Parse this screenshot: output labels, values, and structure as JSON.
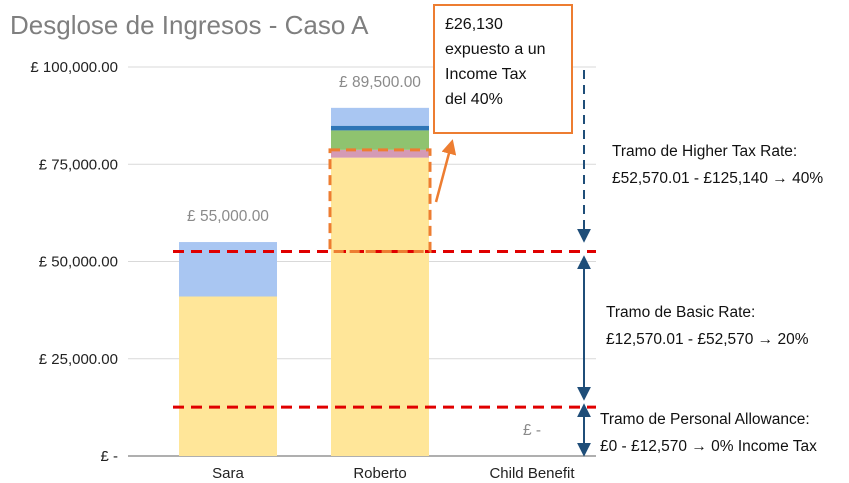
{
  "chart_data": {
    "type": "bar",
    "stacked": true,
    "title": "Desglose de Ingresos - Caso A",
    "categories": [
      "Sara",
      "Roberto",
      "Child Benefit"
    ],
    "ylim": [
      0,
      100000
    ],
    "y_ticks": [
      0,
      25000,
      50000,
      75000,
      100000
    ],
    "y_tick_labels": [
      "£ -",
      "£ 25,000.00",
      "£ 50,000.00",
      "£ 75,000.00",
      "£ 100,000.00"
    ],
    "grid": true,
    "legend": "none",
    "series": [
      {
        "color": "#ffe699",
        "values": [
          41000,
          76700,
          0
        ]
      },
      {
        "color": "#d49ab5",
        "values": [
          0,
          2000,
          0
        ]
      },
      {
        "color": "#8fc36f",
        "values": [
          0,
          5000,
          0
        ]
      },
      {
        "color": "#2e75b6",
        "values": [
          0,
          1200,
          0
        ]
      },
      {
        "color": "#a9c6f2",
        "values": [
          14000,
          4600,
          0
        ]
      }
    ],
    "totals": [
      55000,
      89500,
      0
    ],
    "total_labels": [
      "£ 55,000.00",
      "£ 89,500.00",
      "£ -"
    ],
    "thresholds": [
      {
        "value": 52570,
        "color": "#e00000",
        "style": "dashed"
      },
      {
        "value": 12570,
        "color": "#e00000",
        "style": "dashed"
      }
    ],
    "highlight": {
      "category": "Roberto",
      "from": 52570,
      "to": 78700,
      "color": "#ed7d31"
    }
  },
  "callout": {
    "lines": [
      "£26,130",
      "expuesto a un",
      "Income Tax",
      "del 40%"
    ]
  },
  "bands": [
    {
      "title": "Tramo de Higher Tax Rate:",
      "range": "£52,570.01 - £125,140 → 40%"
    },
    {
      "title": "Tramo de Basic Rate:",
      "range": "£12,570.01 - £52,570 → 20%"
    },
    {
      "title": "Tramo de Personal Allowance:",
      "range": "£0 - £12,570 → 0% Income Tax"
    }
  ],
  "colors": {
    "accent": "#ed7d31",
    "threshold": "#e00000",
    "arrow": "#1f4e79"
  }
}
